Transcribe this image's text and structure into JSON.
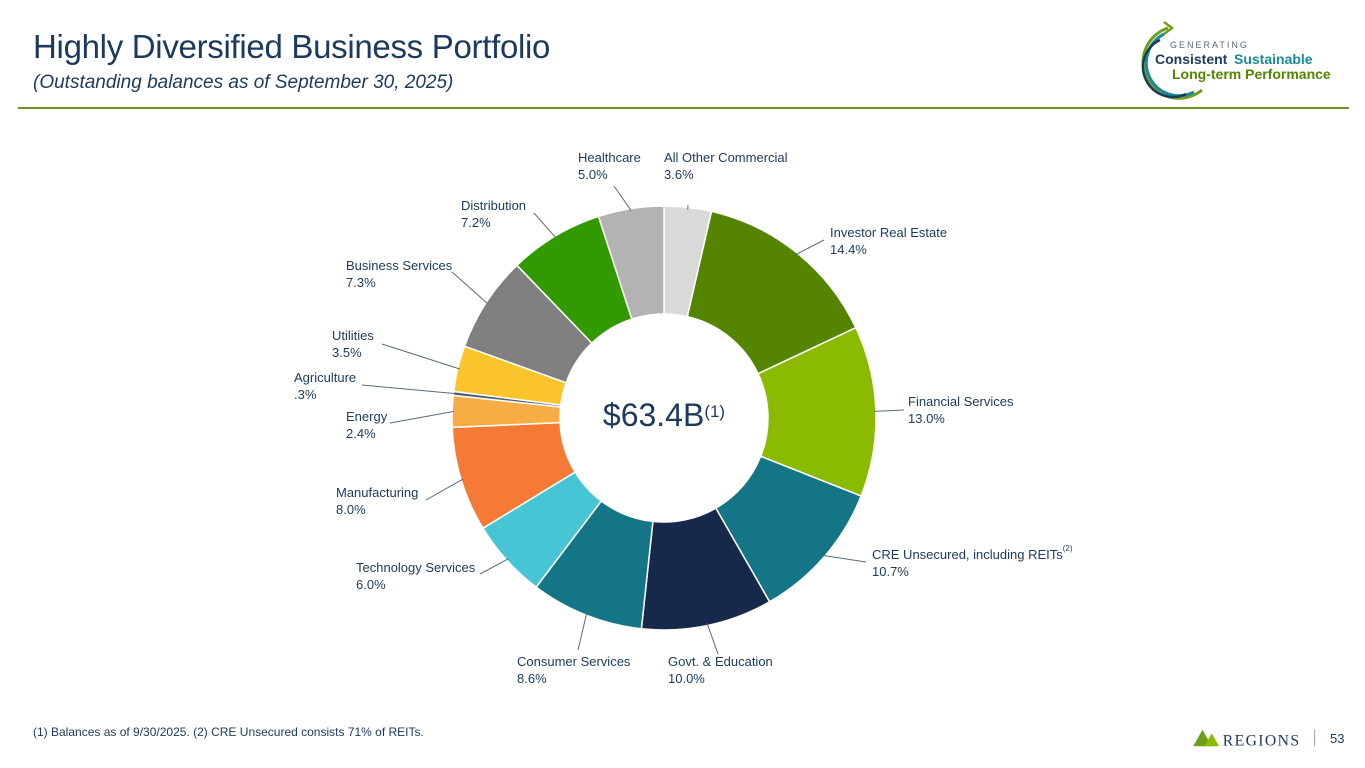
{
  "header": {
    "title": "Highly Diversified Business Portfolio",
    "subtitle": "(Outstanding balances as of September 30, 2025)"
  },
  "logo": {
    "line1": "GENERATING",
    "line2a": "Consistent",
    "line2b": "Sustainable",
    "line3": "Long-term Performance"
  },
  "chart_data": {
    "type": "pie",
    "style": "donut",
    "center_label": "$63.4B",
    "center_sup": "(1)",
    "slices": [
      {
        "name": "All Other Commercial",
        "value": 3.6,
        "label": "3.6%",
        "color": "#d9d9d9"
      },
      {
        "name": "Investor Real Estate",
        "value": 14.4,
        "label": "14.4%",
        "color": "#548400"
      },
      {
        "name": "Financial Services",
        "value": 13.0,
        "label": "13.0%",
        "color": "#8abb00"
      },
      {
        "name": "CRE Unsecured, including REITs",
        "value": 10.7,
        "label": "10.7%",
        "color": "#147586",
        "sup": "(2)"
      },
      {
        "name": "Govt. & Education",
        "value": 10.0,
        "label": "10.0%",
        "color": "#17294a"
      },
      {
        "name": "Consumer Services",
        "value": 8.6,
        "label": "8.6%",
        "color": "#147586"
      },
      {
        "name": "Technology Services",
        "value": 6.0,
        "label": "6.0%",
        "color": "#48c5d5"
      },
      {
        "name": "Manufacturing",
        "value": 8.0,
        "label": "8.0%",
        "color": "#f47a36"
      },
      {
        "name": "Energy",
        "value": 2.4,
        "label": "2.4%",
        "color": "#f8ad44"
      },
      {
        "name": "Agriculture",
        "value": 0.3,
        "label": ".3%",
        "color": "#4f5f74"
      },
      {
        "name": "Utilities",
        "value": 3.5,
        "label": "3.5%",
        "color": "#fcc42b"
      },
      {
        "name": "Business Services",
        "value": 7.3,
        "label": "7.3%",
        "color": "#808080"
      },
      {
        "name": "Distribution",
        "value": 7.2,
        "label": "7.2%",
        "color": "#319a00"
      },
      {
        "name": "Healthcare",
        "value": 5.0,
        "label": "5.0%",
        "color": "#b3b3b3"
      }
    ]
  },
  "footer": {
    "footnote": "(1) Balances as of 9/30/2025. (2) CRE Unsecured consists 71% of REITs.",
    "brand": "REGIONS",
    "page": "53"
  }
}
